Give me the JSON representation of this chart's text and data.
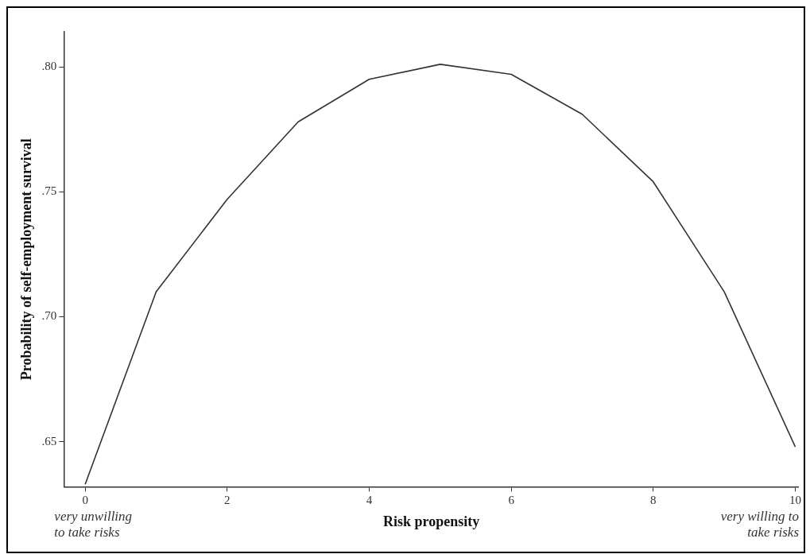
{
  "chart_data": {
    "type": "line",
    "xlabel": "Risk propensity",
    "ylabel": "Probability of self-employment survival",
    "x": [
      0,
      1,
      2,
      3,
      4,
      5,
      6,
      7,
      8,
      9,
      10
    ],
    "series": [
      {
        "color": "#333333",
        "values": [
          0.633,
          0.71,
          0.747,
          0.778,
          0.795,
          0.801,
          0.797,
          0.781,
          0.754,
          0.71,
          0.648
        ]
      }
    ],
    "xlim": [
      -0.3,
      10.05
    ],
    "xticks": [
      0,
      2,
      4,
      6,
      8,
      10
    ],
    "ylim": [
      0.632,
      0.814
    ],
    "yticks": [
      {
        "value": 0.65,
        "label": ".65"
      },
      {
        "value": 0.7,
        "label": ".70"
      },
      {
        "value": 0.75,
        "label": ".75"
      },
      {
        "value": 0.8,
        "label": ".80"
      }
    ],
    "grid": false,
    "legend": false,
    "marker": "none",
    "line_style": "solid",
    "annotations": [
      "very unwilling to take risks",
      "very willing to take risks"
    ]
  }
}
